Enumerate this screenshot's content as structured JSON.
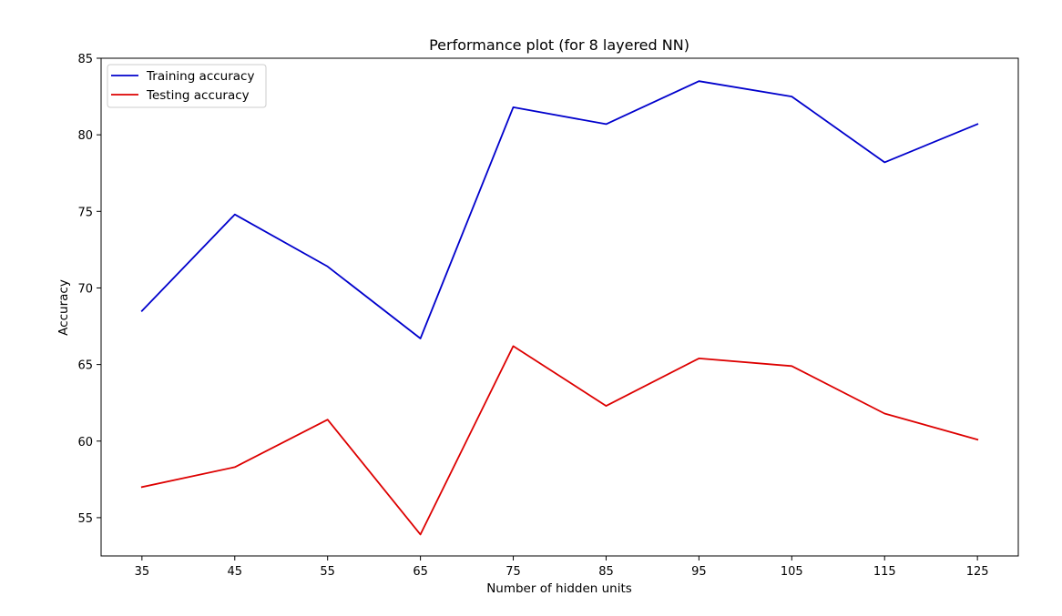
{
  "chart_data": {
    "type": "line",
    "title": "Performance plot (for 8 layered NN)",
    "xlabel": "Number of hidden units",
    "ylabel": "Accuracy",
    "x": [
      35,
      45,
      55,
      65,
      75,
      85,
      95,
      105,
      115,
      125
    ],
    "xlim": [
      30.6,
      129.4
    ],
    "ylim": [
      52.5,
      85
    ],
    "yticks": [
      55,
      60,
      65,
      70,
      75,
      80,
      85
    ],
    "grid": false,
    "legend_position": "top-left",
    "series": [
      {
        "name": "Training accuracy",
        "color": "#0000cc",
        "values": [
          68.5,
          74.8,
          71.4,
          66.7,
          81.8,
          80.7,
          83.5,
          82.5,
          78.2,
          80.7
        ]
      },
      {
        "name": "Testing accuracy",
        "color": "#dd0000",
        "values": [
          57.0,
          58.3,
          61.4,
          53.9,
          66.2,
          62.3,
          65.4,
          64.9,
          61.8,
          60.1
        ]
      }
    ]
  }
}
